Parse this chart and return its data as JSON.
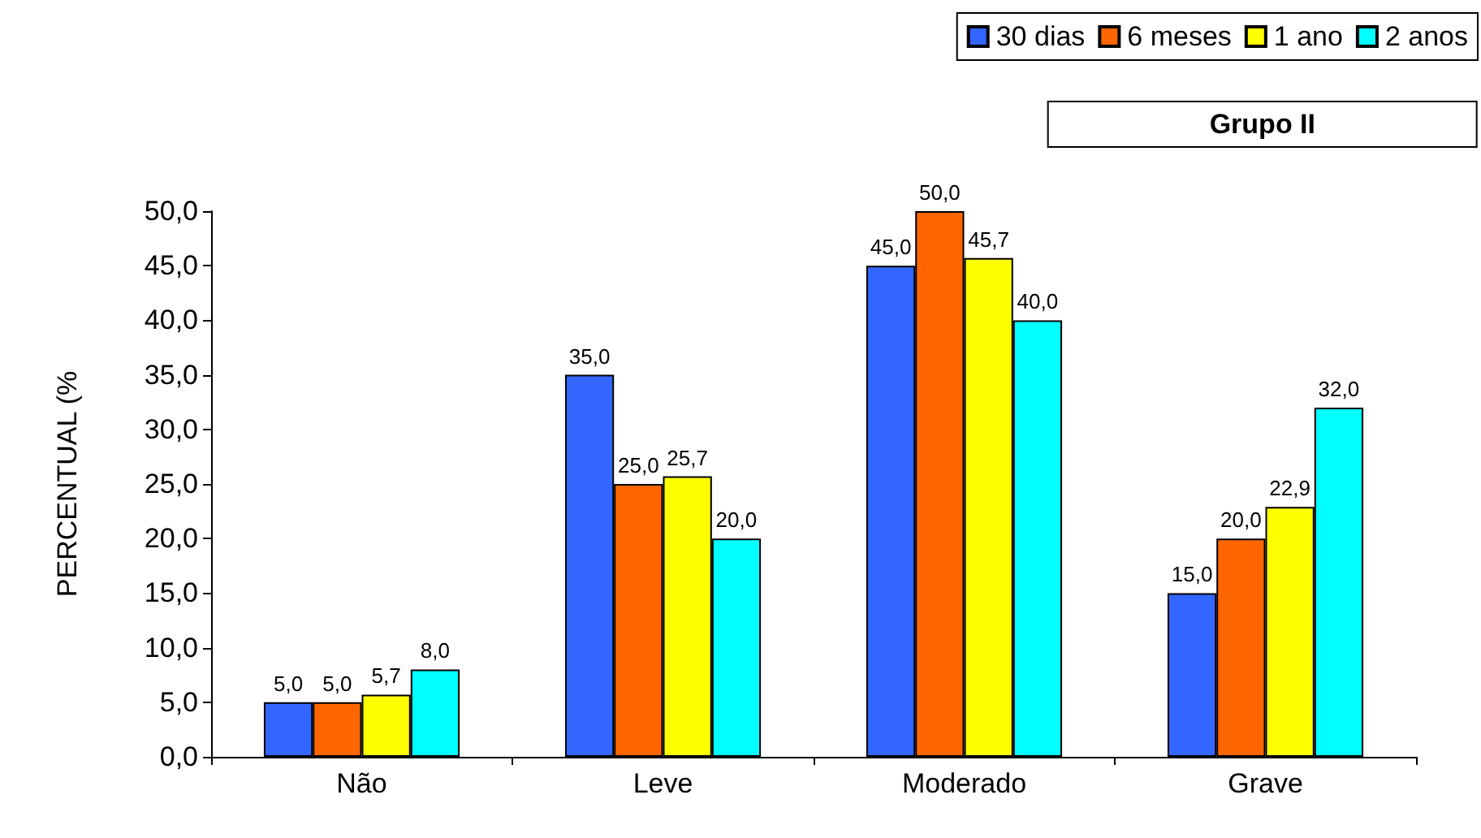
{
  "chart_data": {
    "type": "bar",
    "title": "Grupo II",
    "ylabel": "PERCENTUAL (%",
    "categories": [
      "Não",
      "Leve",
      "Moderado",
      "Grave"
    ],
    "series": [
      {
        "name": "30 dias",
        "color": "#3366ff",
        "values": [
          5.0,
          35.0,
          45.0,
          15.0
        ],
        "value_labels": [
          "5,0",
          "35,0",
          "45,0",
          "15,0"
        ]
      },
      {
        "name": "6 meses",
        "color": "#ff6600",
        "values": [
          5.0,
          25.0,
          50.0,
          20.0
        ],
        "value_labels": [
          "5,0",
          "25,0",
          "50,0",
          "20,0"
        ]
      },
      {
        "name": "1 ano",
        "color": "#ffff00",
        "values": [
          5.7,
          25.7,
          45.7,
          22.9
        ],
        "value_labels": [
          "5,7",
          "25,7",
          "45,7",
          "22,9"
        ]
      },
      {
        "name": "2 anos",
        "color": "#00ffff",
        "values": [
          8.0,
          20.0,
          40.0,
          32.0
        ],
        "value_labels": [
          "8,0",
          "20,0",
          "40,0",
          "32,0"
        ]
      }
    ],
    "ylim": [
      0,
      50
    ],
    "yticks": [
      {
        "value": 0,
        "label": "0,0"
      },
      {
        "value": 5,
        "label": "5,0"
      },
      {
        "value": 10,
        "label": "10,0"
      },
      {
        "value": 15,
        "label": "15,0"
      },
      {
        "value": 20,
        "label": "20,0"
      },
      {
        "value": 25,
        "label": "25,0"
      },
      {
        "value": 30,
        "label": "30,0"
      },
      {
        "value": 35,
        "label": "35,0"
      },
      {
        "value": 40,
        "label": "40,0"
      },
      {
        "value": 45,
        "label": "45,0"
      },
      {
        "value": 50,
        "label": "50,0"
      }
    ],
    "grid": false,
    "legend": "top right"
  }
}
